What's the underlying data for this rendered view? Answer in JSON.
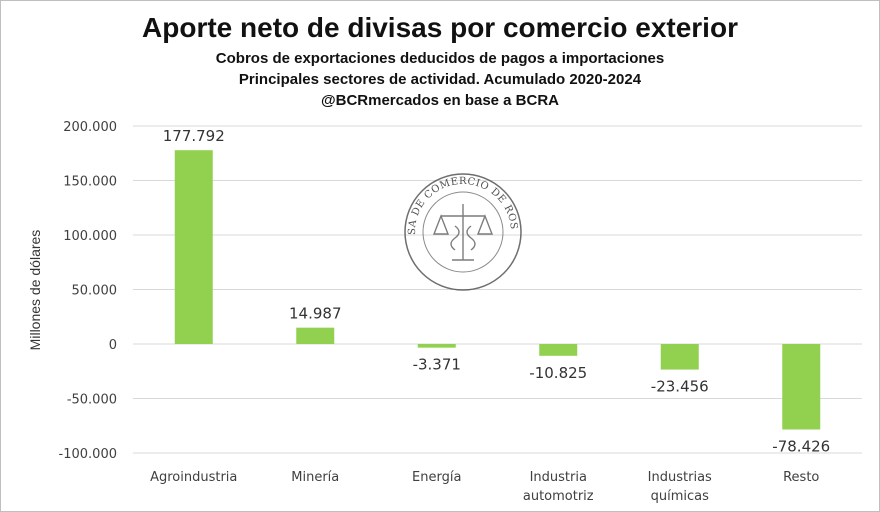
{
  "chart_data": {
    "type": "bar",
    "title": "Aporte neto de divisas por comercio exterior",
    "subtitle_lines": [
      "Cobros de exportaciones deducidos de pagos a importaciones",
      "Principales sectores de actividad. Acumulado 2020-2024",
      "@BCRmercados en base a BCRA"
    ],
    "ylabel": "Millones de dólares",
    "xlabel": "",
    "categories": [
      [
        "Agroindustria"
      ],
      [
        "Minería"
      ],
      [
        "Energía"
      ],
      [
        "Industria",
        "automotriz"
      ],
      [
        "Industrias",
        "químicas"
      ],
      [
        "Resto"
      ]
    ],
    "values": [
      177792,
      14987,
      -3371,
      -10825,
      -23456,
      -78426
    ],
    "data_labels": [
      "177.792",
      "14.987",
      "-3.371",
      "-10.825",
      "-23.456",
      "-78.426"
    ],
    "yticks": [
      200000,
      150000,
      100000,
      50000,
      0,
      -50000,
      -100000
    ],
    "ytick_labels": [
      "200.000",
      "150.000",
      "100.000",
      "50.000",
      "0",
      "-50.000",
      "-100.000"
    ],
    "ylim": [
      -100000,
      200000
    ],
    "grid": true,
    "legend": "none",
    "bar_color": "#92d050",
    "grid_color": "#d9d9d9",
    "watermark": {
      "text": "BOLSA DE COMERCIO DE ROSARIO",
      "icon": "bcr-seal-scales-icon"
    }
  }
}
